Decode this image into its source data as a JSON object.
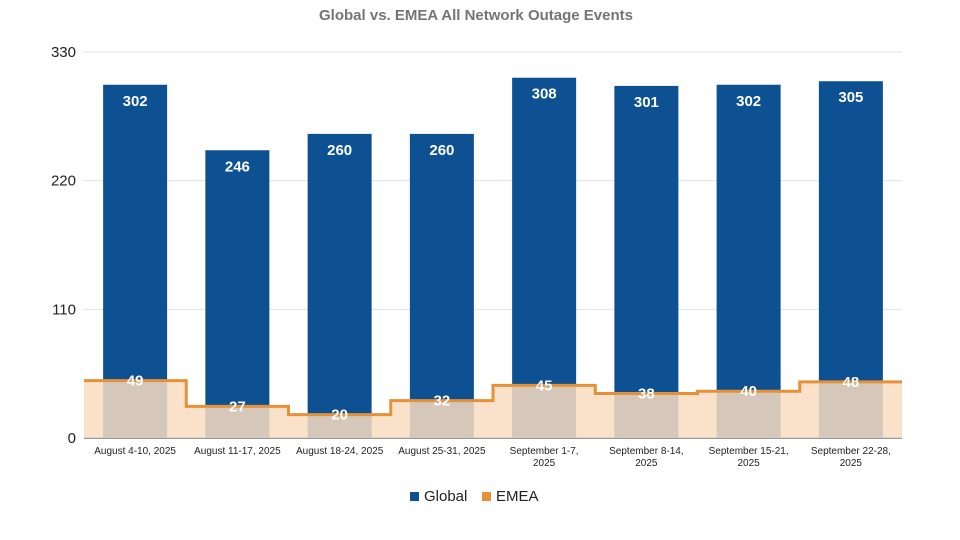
{
  "chart_data": {
    "type": "bar",
    "title": "Global vs. EMEA All Network Outage Events",
    "categories": [
      [
        "August 4-10, 2025"
      ],
      [
        "August 11-17, 2025"
      ],
      [
        "August 18-24, 2025"
      ],
      [
        "August 25-31, 2025"
      ],
      [
        "September 1-7,",
        "2025"
      ],
      [
        "September 8-14,",
        "2025"
      ],
      [
        "September 15-21,",
        "2025"
      ],
      [
        "September 22-28,",
        "2025"
      ]
    ],
    "series": [
      {
        "name": "Global",
        "kind": "bar",
        "color": "#0d5193",
        "values": [
          302,
          246,
          260,
          260,
          308,
          301,
          302,
          305
        ]
      },
      {
        "name": "EMEA",
        "kind": "stepped-area",
        "color": "#e69138",
        "fill": "#f9dcc0",
        "values": [
          49,
          27,
          20,
          32,
          45,
          38,
          40,
          48
        ]
      }
    ],
    "ylim": [
      0,
      330
    ],
    "yticks": [
      0,
      110,
      220,
      330
    ],
    "legend": "bottom",
    "grid": true
  }
}
